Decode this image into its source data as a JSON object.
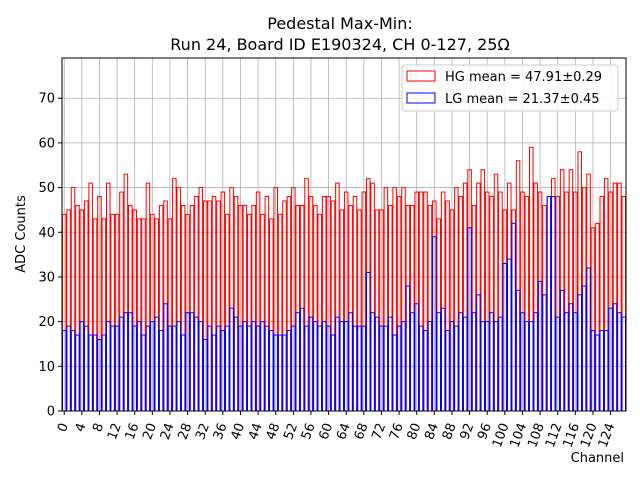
{
  "chart_data": {
    "type": "bar",
    "title_line1": "Pedestal Max-Min:",
    "title_line2": "Run 24, Board ID E190324, CH 0-127, 25Ω",
    "xlabel": "Channel",
    "ylabel": "ADC Counts",
    "xlim": [
      -0.5,
      127.5
    ],
    "ylim": [
      0,
      79
    ],
    "x_ticks": [
      0,
      4,
      8,
      12,
      16,
      20,
      24,
      28,
      32,
      36,
      40,
      44,
      48,
      52,
      56,
      60,
      64,
      68,
      72,
      76,
      80,
      84,
      88,
      92,
      96,
      100,
      104,
      108,
      112,
      116,
      120,
      124
    ],
    "y_ticks": [
      0,
      10,
      20,
      30,
      40,
      50,
      60,
      70
    ],
    "grid": true,
    "legend_position": "top-right",
    "series": [
      {
        "name": "HG mean = 47.91±0.29",
        "edge_color": "#ff0000",
        "values": [
          44,
          45,
          50,
          46,
          45,
          47,
          51,
          43,
          48,
          43,
          51,
          44,
          44,
          49,
          53,
          46,
          45,
          43,
          43,
          51,
          44,
          43,
          46,
          47,
          43,
          52,
          50,
          46,
          44,
          46,
          48,
          50,
          47,
          47,
          48,
          47,
          49,
          44,
          50,
          48,
          46,
          46,
          44,
          46,
          49,
          44,
          48,
          43,
          50,
          44,
          47,
          48,
          50,
          46,
          46,
          52,
          48,
          46,
          44,
          48,
          48,
          47,
          51,
          45,
          49,
          46,
          48,
          45,
          49,
          52,
          51,
          45,
          45,
          50,
          46,
          50,
          48,
          50,
          46,
          46,
          49,
          49,
          49,
          46,
          47,
          43,
          49,
          47,
          45,
          50,
          48,
          51,
          54,
          46,
          51,
          54,
          49,
          48,
          53,
          49,
          45,
          51,
          45,
          56,
          49,
          48,
          59,
          51,
          49,
          46,
          48,
          52,
          48,
          54,
          49,
          54,
          49,
          58,
          50,
          53,
          41,
          42,
          48,
          52,
          49,
          51,
          51,
          48
        ]
      },
      {
        "name": "LG mean = 21.37±0.45",
        "edge_color": "#0000ff",
        "values": [
          18,
          19,
          18,
          17,
          20,
          19,
          17,
          17,
          16,
          17,
          20,
          19,
          19,
          21,
          22,
          22,
          19,
          20,
          17,
          19,
          20,
          21,
          18,
          24,
          19,
          19,
          20,
          17,
          22,
          22,
          21,
          20,
          16,
          19,
          17,
          19,
          18,
          19,
          23,
          21,
          19,
          20,
          19,
          20,
          19,
          20,
          19,
          18,
          17,
          17,
          17,
          18,
          19,
          22,
          23,
          19,
          21,
          20,
          19,
          20,
          19,
          17,
          21,
          20,
          20,
          22,
          19,
          19,
          19,
          31,
          22,
          21,
          19,
          19,
          21,
          17,
          19,
          20,
          28,
          22,
          24,
          19,
          18,
          20,
          39,
          22,
          23,
          18,
          20,
          19,
          22,
          21,
          41,
          22,
          26,
          20,
          20,
          22,
          20,
          21,
          33,
          34,
          42,
          27,
          22,
          20,
          20,
          22,
          29,
          26,
          48,
          48,
          21,
          27,
          22,
          24,
          22,
          26,
          28,
          32,
          18,
          17,
          18,
          18,
          23,
          24,
          22,
          21
        ]
      }
    ]
  }
}
